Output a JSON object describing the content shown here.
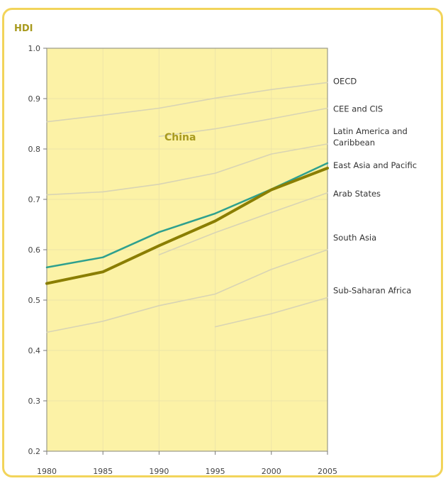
{
  "chart_data": {
    "type": "line",
    "title": "HDI",
    "ylim": [
      0.2,
      1.0
    ],
    "xlim": [
      1980,
      2005
    ],
    "yticks": [
      "0.2",
      "0.3",
      "0.4",
      "0.5",
      "0.6",
      "0.7",
      "0.8",
      "0.9",
      "1.0"
    ],
    "xticks": [
      "1980",
      "1985",
      "1990",
      "1995",
      "2000",
      "2005"
    ],
    "grid": true,
    "series": [
      {
        "name": "OECD",
        "color": "#d8d4b4",
        "label_lines": [
          "OECD"
        ],
        "x": [
          1980,
          1985,
          1990,
          1995,
          2000,
          2005
        ],
        "y": [
          0.854,
          0.867,
          0.881,
          0.901,
          0.918,
          0.932
        ]
      },
      {
        "name": "CEE and CIS",
        "color": "#d8d4b4",
        "label_lines": [
          "CEE and CIS"
        ],
        "x": [
          1990,
          1995,
          2000,
          2005
        ],
        "y": [
          0.825,
          0.84,
          0.86,
          0.881
        ]
      },
      {
        "name": "Latin America and Caribbean",
        "color": "#d8d4b4",
        "label_lines": [
          "Latin America and",
          "Caribbean"
        ],
        "x": [
          1980,
          1985,
          1990,
          1995,
          2000,
          2005
        ],
        "y": [
          0.709,
          0.715,
          0.73,
          0.752,
          0.79,
          0.81
        ]
      },
      {
        "name": "East Asia and Pacific",
        "color": "#2ea08e",
        "label_lines": [
          "East Asia and Pacific"
        ],
        "x": [
          1980,
          1985,
          1990,
          1995,
          2000,
          2005
        ],
        "y": [
          0.565,
          0.585,
          0.635,
          0.672,
          0.72,
          0.772
        ]
      },
      {
        "name": "China",
        "color": "#8a7e00",
        "label_lines": [],
        "x": [
          1980,
          1985,
          1990,
          1995,
          2000,
          2005
        ],
        "y": [
          0.533,
          0.556,
          0.608,
          0.657,
          0.719,
          0.762
        ]
      },
      {
        "name": "Arab States",
        "color": "#d8d4b4",
        "label_lines": [
          "Arab States"
        ],
        "x": [
          1990,
          1995,
          2000,
          2005
        ],
        "y": [
          0.59,
          0.634,
          0.674,
          0.713
        ]
      },
      {
        "name": "South Asia",
        "color": "#d8d4b4",
        "label_lines": [
          "South Asia"
        ],
        "x": [
          1980,
          1985,
          1990,
          1995,
          2000,
          2005
        ],
        "y": [
          0.436,
          0.458,
          0.489,
          0.512,
          0.561,
          0.6
        ]
      },
      {
        "name": "Sub-Saharan Africa",
        "color": "#d8d4b4",
        "label_lines": [
          "Sub-Saharan Africa"
        ],
        "x": [
          1995,
          2000,
          2005
        ],
        "y": [
          0.447,
          0.473,
          0.505
        ]
      }
    ],
    "annotation": "China",
    "colors": {
      "plot_bg": "#fcf2a6",
      "frame": "#f2d45a",
      "grid": "#ede4a8"
    }
  }
}
